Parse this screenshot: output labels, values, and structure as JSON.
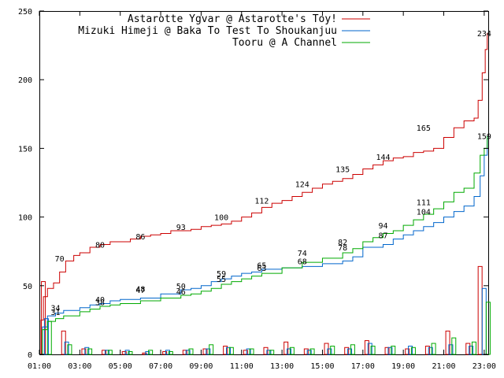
{
  "chart_data": {
    "type": "line",
    "title": "",
    "xlabel": "",
    "ylabel": "",
    "grid": false,
    "legend_position": "top-right",
    "xlim": [
      1,
      23.2
    ],
    "ylim": [
      0,
      250
    ],
    "xticks": [
      "01:00",
      "03:00",
      "05:00",
      "07:00",
      "09:00",
      "11:00",
      "13:00",
      "15:00",
      "17:00",
      "19:00",
      "21:00",
      "23:00"
    ],
    "yticks": [
      "0",
      "50",
      "100",
      "150",
      "200",
      "250"
    ],
    "series": [
      {
        "name": "Astarotte Ygvar @ Astarotte's Toy!",
        "color": "#cc0000",
        "cumulative": [
          [
            1,
            0
          ],
          [
            1.08,
            25
          ],
          [
            1.2,
            42
          ],
          [
            1.4,
            48
          ],
          [
            1.7,
            52
          ],
          [
            2,
            60
          ],
          [
            2.3,
            68
          ],
          [
            2.7,
            72
          ],
          [
            3,
            74
          ],
          [
            3.5,
            78
          ],
          [
            4,
            80
          ],
          [
            4.5,
            82
          ],
          [
            5,
            82
          ],
          [
            5.5,
            84
          ],
          [
            6,
            86
          ],
          [
            6.5,
            87
          ],
          [
            7,
            88
          ],
          [
            7.5,
            90
          ],
          [
            8,
            90
          ],
          [
            8.5,
            91
          ],
          [
            9,
            93
          ],
          [
            9.5,
            94
          ],
          [
            10,
            95
          ],
          [
            10.5,
            97
          ],
          [
            11,
            100
          ],
          [
            11.5,
            103
          ],
          [
            12,
            107
          ],
          [
            12.5,
            110
          ],
          [
            13,
            112
          ],
          [
            13.5,
            115
          ],
          [
            14,
            118
          ],
          [
            14.5,
            121
          ],
          [
            15,
            124
          ],
          [
            15.5,
            126
          ],
          [
            16,
            128
          ],
          [
            16.5,
            131
          ],
          [
            17,
            135
          ],
          [
            17.5,
            138
          ],
          [
            18,
            141
          ],
          [
            18.5,
            143
          ],
          [
            19,
            144
          ],
          [
            19.5,
            147
          ],
          [
            20,
            148
          ],
          [
            20.5,
            150
          ],
          [
            21,
            158
          ],
          [
            21.5,
            165
          ],
          [
            22,
            170
          ],
          [
            22.5,
            172
          ],
          [
            22.7,
            185
          ],
          [
            22.9,
            205
          ],
          [
            23.05,
            222
          ],
          [
            23.15,
            234
          ]
        ],
        "hourly": [
          [
            1.1,
            53
          ],
          [
            2.1,
            17
          ],
          [
            3.1,
            4
          ],
          [
            4.1,
            3
          ],
          [
            5.1,
            2
          ],
          [
            6.1,
            1
          ],
          [
            7.1,
            2
          ],
          [
            8.1,
            3
          ],
          [
            9.1,
            4
          ],
          [
            10.1,
            6
          ],
          [
            11.1,
            3
          ],
          [
            12.1,
            5
          ],
          [
            13.1,
            9
          ],
          [
            14.1,
            4
          ],
          [
            15.1,
            8
          ],
          [
            16.1,
            5
          ],
          [
            17.1,
            10
          ],
          [
            18.1,
            5
          ],
          [
            19.1,
            4
          ],
          [
            20.1,
            6
          ],
          [
            21.1,
            17
          ],
          [
            22.1,
            8
          ],
          [
            22.7,
            64
          ]
        ],
        "labels": [
          [
            2,
            70
          ],
          [
            4,
            80
          ],
          [
            6,
            86
          ],
          [
            8,
            93
          ],
          [
            10,
            100
          ],
          [
            12,
            112
          ],
          [
            14,
            124
          ],
          [
            16,
            135
          ],
          [
            18,
            144
          ],
          [
            20,
            165
          ],
          [
            23,
            234
          ]
        ]
      },
      {
        "name": "Mizuki Himeji @ Baka To Test To Shoukanjuu",
        "color": "#0066cc",
        "cumulative": [
          [
            1,
            0
          ],
          [
            1.15,
            20
          ],
          [
            1.4,
            28
          ],
          [
            1.8,
            30
          ],
          [
            2.2,
            32
          ],
          [
            3,
            34
          ],
          [
            3.5,
            36
          ],
          [
            4,
            37
          ],
          [
            4.5,
            39
          ],
          [
            5,
            40
          ],
          [
            6,
            41
          ],
          [
            7,
            44
          ],
          [
            8,
            47
          ],
          [
            8.5,
            48
          ],
          [
            9,
            50
          ],
          [
            9.5,
            53
          ],
          [
            10,
            55
          ],
          [
            10.5,
            57
          ],
          [
            11,
            59
          ],
          [
            11.5,
            60
          ],
          [
            12,
            62
          ],
          [
            13,
            63
          ],
          [
            14,
            64
          ],
          [
            15,
            66
          ],
          [
            16,
            68
          ],
          [
            16.5,
            71
          ],
          [
            17,
            78
          ],
          [
            17.5,
            78
          ],
          [
            18,
            80
          ],
          [
            18.5,
            84
          ],
          [
            19,
            87
          ],
          [
            19.5,
            90
          ],
          [
            20,
            93
          ],
          [
            20.5,
            96
          ],
          [
            21,
            100
          ],
          [
            21.5,
            104
          ],
          [
            22,
            108
          ],
          [
            22.5,
            115
          ],
          [
            22.8,
            130
          ],
          [
            23,
            145
          ],
          [
            23.15,
            159
          ]
        ],
        "hourly": [
          [
            1.25,
            26
          ],
          [
            2.25,
            9
          ],
          [
            3.25,
            5
          ],
          [
            4.25,
            3
          ],
          [
            5.25,
            3
          ],
          [
            6.25,
            2
          ],
          [
            7.25,
            3
          ],
          [
            8.25,
            3
          ],
          [
            9.25,
            4
          ],
          [
            10.25,
            5
          ],
          [
            11.25,
            4
          ],
          [
            12.25,
            3
          ],
          [
            13.25,
            4
          ],
          [
            14.25,
            3
          ],
          [
            15.25,
            4
          ],
          [
            16.25,
            4
          ],
          [
            17.25,
            8
          ],
          [
            18.25,
            5
          ],
          [
            19.25,
            6
          ],
          [
            20.25,
            5
          ],
          [
            21.25,
            7
          ],
          [
            22.25,
            6
          ],
          [
            22.9,
            48
          ]
        ],
        "labels": [
          [
            1.8,
            31
          ],
          [
            4,
            40
          ],
          [
            6,
            47
          ],
          [
            8,
            50
          ],
          [
            10,
            59
          ],
          [
            12,
            63
          ],
          [
            14,
            68
          ],
          [
            16,
            78
          ],
          [
            18,
            87
          ],
          [
            20,
            104
          ]
        ]
      },
      {
        "name": "Tooru @ A Channel",
        "color": "#00aa00",
        "cumulative": [
          [
            1,
            0
          ],
          [
            1.15,
            18
          ],
          [
            1.4,
            24
          ],
          [
            1.8,
            26
          ],
          [
            2.2,
            28
          ],
          [
            3,
            31
          ],
          [
            3.5,
            33
          ],
          [
            4,
            35
          ],
          [
            4.5,
            36
          ],
          [
            5,
            37
          ],
          [
            6,
            39
          ],
          [
            7,
            41
          ],
          [
            8,
            43
          ],
          [
            8.5,
            44
          ],
          [
            9,
            46
          ],
          [
            9.5,
            48
          ],
          [
            10,
            51
          ],
          [
            10.5,
            53
          ],
          [
            11,
            55
          ],
          [
            11.5,
            57
          ],
          [
            12,
            59
          ],
          [
            13,
            63
          ],
          [
            14,
            67
          ],
          [
            15,
            70
          ],
          [
            16,
            74
          ],
          [
            16.5,
            77
          ],
          [
            17,
            82
          ],
          [
            17.5,
            85
          ],
          [
            18,
            88
          ],
          [
            18.5,
            90
          ],
          [
            19,
            94
          ],
          [
            19.5,
            98
          ],
          [
            20,
            102
          ],
          [
            20.5,
            106
          ],
          [
            21,
            111
          ],
          [
            21.5,
            118
          ],
          [
            22,
            121
          ],
          [
            22.5,
            132
          ],
          [
            22.8,
            145
          ],
          [
            23,
            150
          ],
          [
            23.15,
            159
          ]
        ],
        "hourly": [
          [
            1.4,
            24
          ],
          [
            2.4,
            7
          ],
          [
            3.4,
            4
          ],
          [
            4.4,
            3
          ],
          [
            5.4,
            2
          ],
          [
            6.4,
            3
          ],
          [
            7.4,
            2
          ],
          [
            8.4,
            4
          ],
          [
            9.4,
            7
          ],
          [
            10.4,
            5
          ],
          [
            11.4,
            4
          ],
          [
            12.4,
            3
          ],
          [
            13.4,
            5
          ],
          [
            14.4,
            4
          ],
          [
            15.4,
            6
          ],
          [
            16.4,
            7
          ],
          [
            17.4,
            6
          ],
          [
            18.4,
            6
          ],
          [
            19.4,
            5
          ],
          [
            20.4,
            8
          ],
          [
            21.4,
            12
          ],
          [
            22.4,
            9
          ],
          [
            23.1,
            38
          ]
        ],
        "labels": [
          [
            1.8,
            34
          ],
          [
            4,
            38
          ],
          [
            6,
            48
          ],
          [
            8,
            46
          ],
          [
            10,
            55
          ],
          [
            12,
            65
          ],
          [
            14,
            74
          ],
          [
            16,
            82
          ],
          [
            18,
            94
          ],
          [
            20,
            111
          ],
          [
            23,
            159
          ]
        ]
      }
    ]
  }
}
